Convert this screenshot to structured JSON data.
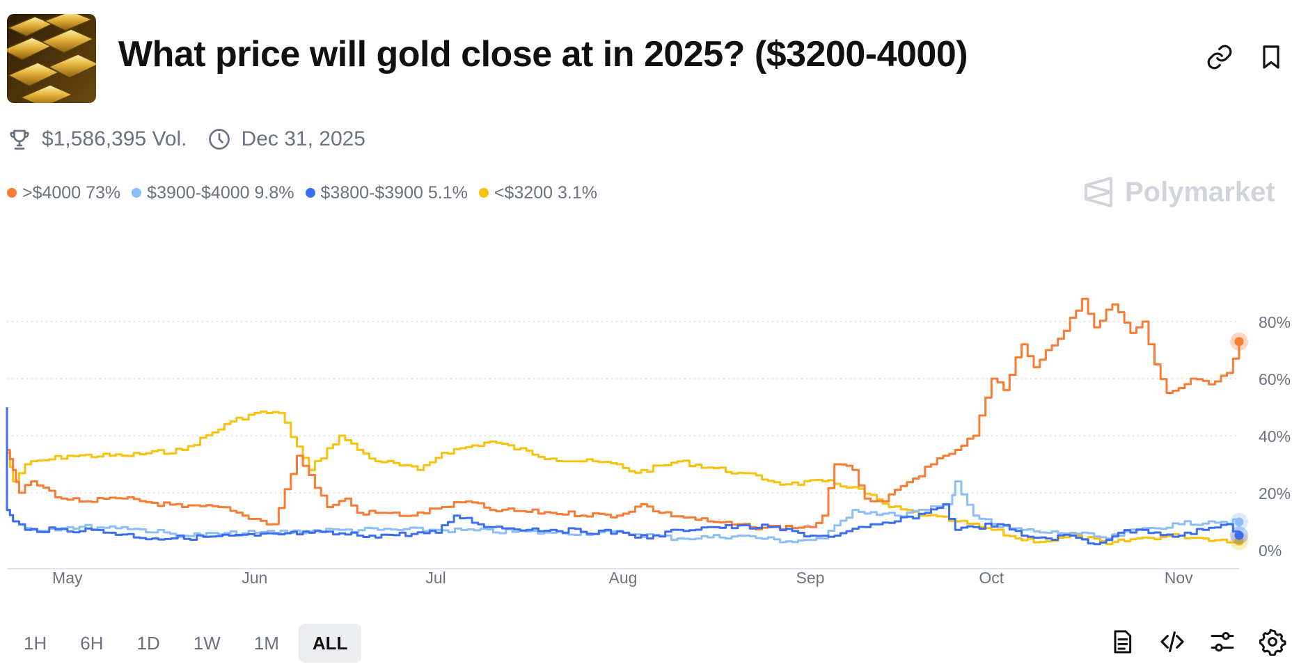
{
  "header": {
    "title": "What price will gold close at in 2025? ($3200-4000)",
    "thumbnail": "gold-bars-image",
    "actions": [
      {
        "name": "copy-link",
        "icon": "link-icon"
      },
      {
        "name": "bookmark",
        "icon": "bookmark-icon"
      }
    ]
  },
  "meta": {
    "volume": "$1,586,395 Vol.",
    "end_date": "Dec 31, 2025",
    "volume_icon": "trophy-icon",
    "date_icon": "clock-icon"
  },
  "brand": {
    "name": "Polymarket"
  },
  "legend": [
    {
      "label": ">$4000",
      "value": "73%",
      "color": "#f97c35"
    },
    {
      "label": "$3900-$4000",
      "value": "9.8%",
      "color": "#8dbef8"
    },
    {
      "label": "$3800-$3900",
      "value": "5.1%",
      "color": "#3c6ef2"
    },
    {
      "label": "<$3200",
      "value": "3.1%",
      "color": "#f8c20c"
    }
  ],
  "chart_data": {
    "type": "line",
    "x_tick_labels": [
      "May",
      "Jun",
      "Jul",
      "Aug",
      "Sep",
      "Oct",
      "Nov"
    ],
    "y_tick_labels": [
      "0%",
      "20%",
      "40%",
      "60%",
      "80%"
    ],
    "ylim": [
      0,
      100
    ],
    "grid": true,
    "legend_position": "top-left",
    "series": [
      {
        "name": ">$4000",
        "color": "#f97c35",
        "x": [
          "Apr 21",
          "Apr 22",
          "Apr 23",
          "Apr 25",
          "Apr 30",
          "May 4",
          "May 10",
          "May 20",
          "May 26",
          "May 30",
          "Jun 4",
          "Jun 8",
          "Jun 13",
          "Jun 16",
          "Jun 18",
          "Jun 22",
          "Jun 27",
          "Jul 2",
          "Jul 6",
          "Jul 10",
          "Jul 20",
          "Jul 31",
          "Aug 4",
          "Aug 7",
          "Aug 15",
          "Aug 22",
          "Sep 1",
          "Sep 3",
          "Sep 5",
          "Sep 8",
          "Sep 10",
          "Sep 13",
          "Sep 18",
          "Sep 21",
          "Sep 25",
          "Sep 28",
          "Oct 1",
          "Oct 3",
          "Oct 6",
          "Oct 8",
          "Oct 10",
          "Oct 12",
          "Oct 16",
          "Oct 18",
          "Oct 21",
          "Oct 24",
          "Oct 26",
          "Oct 28",
          "Oct 30",
          "Nov 3",
          "Nov 6",
          "Nov 9",
          "Nov 11"
        ],
        "values": [
          35,
          28,
          20,
          24,
          18,
          17,
          18,
          15,
          15,
          12,
          9,
          33,
          15,
          18,
          13,
          13,
          12,
          15,
          17,
          14,
          13,
          12,
          16,
          13,
          10,
          8,
          8,
          12,
          30,
          28,
          18,
          17,
          25,
          30,
          35,
          40,
          60,
          56,
          72,
          64,
          70,
          74,
          88,
          78,
          86,
          76,
          80,
          65,
          55,
          60,
          58,
          62,
          73
        ]
      },
      {
        "name": "$3900-$4000",
        "color": "#8dbef8",
        "x": [
          "Apr 21",
          "Apr 22",
          "Apr 25",
          "May 1",
          "May 10",
          "May 20",
          "Jun 1",
          "Jun 15",
          "Jul 1",
          "Jul 20",
          "Aug 1",
          "Aug 10",
          "Aug 20",
          "Aug 28",
          "Sep 3",
          "Sep 8",
          "Sep 15",
          "Sep 20",
          "Sep 24",
          "Sep 25",
          "Sep 28",
          "Oct 2",
          "Oct 6",
          "Oct 10",
          "Oct 14",
          "Oct 20",
          "Oct 25",
          "Nov 1",
          "Nov 6",
          "Nov 11"
        ],
        "values": [
          14,
          10,
          7,
          8,
          8,
          5,
          6,
          7,
          7,
          6,
          6,
          4,
          5,
          3,
          4,
          14,
          12,
          14,
          16,
          24,
          12,
          8,
          7,
          6,
          6,
          4,
          7,
          9,
          10,
          9.8
        ]
      },
      {
        "name": "$3800-$3900",
        "color": "#3c6ef2",
        "x": [
          "Apr 21",
          "Apr 21",
          "Apr 22",
          "Apr 24",
          "May 5",
          "May 15",
          "Jun 1",
          "Jun 10",
          "Jun 20",
          "Jul 1",
          "Jul 4",
          "Jul 10",
          "Jul 20",
          "Aug 1",
          "Aug 5",
          "Aug 10",
          "Aug 15",
          "Aug 25",
          "Sep 1",
          "Sep 5",
          "Sep 10",
          "Sep 15",
          "Sep 20",
          "Sep 23",
          "Sep 25",
          "Sep 28",
          "Oct 2",
          "Oct 6",
          "Oct 10",
          "Oct 14",
          "Oct 18",
          "Oct 22",
          "Oct 26",
          "Nov 1",
          "Nov 5",
          "Nov 9",
          "Nov 11"
        ],
        "values": [
          50,
          14,
          10,
          7,
          7,
          4,
          5,
          6,
          5,
          6,
          12,
          8,
          7,
          6,
          4,
          7,
          8,
          8,
          5,
          5,
          8,
          10,
          13,
          16,
          7,
          8,
          9,
          5,
          4,
          5,
          2,
          6,
          7,
          5,
          7,
          9,
          5.1
        ]
      },
      {
        "name": "<$3200",
        "color": "#f8c20c",
        "x": [
          "Apr 21",
          "Apr 22",
          "Apr 24",
          "May 1",
          "May 10",
          "May 20",
          "May 28",
          "Jun 1",
          "Jun 5",
          "Jun 10",
          "Jun 15",
          "Jun 20",
          "Jun 28",
          "Jul 2",
          "Jul 10",
          "Jul 20",
          "Jul 31",
          "Aug 3",
          "Aug 10",
          "Aug 20",
          "Aug 28",
          "Sep 3",
          "Sep 8",
          "Sep 14",
          "Sep 20",
          "Sep 25",
          "Oct 1",
          "Oct 5",
          "Oct 10",
          "Oct 15",
          "Oct 20",
          "Oct 25",
          "Nov 1",
          "Nov 5",
          "Nov 11"
        ],
        "values": [
          34,
          24,
          30,
          33,
          33,
          35,
          45,
          48,
          48,
          28,
          40,
          32,
          28,
          34,
          38,
          32,
          30,
          27,
          31,
          27,
          23,
          24,
          22,
          15,
          12,
          10,
          7,
          4,
          3,
          5,
          2,
          4,
          5,
          4,
          3.1
        ]
      }
    ]
  },
  "time_ranges": {
    "options": [
      "1H",
      "6H",
      "1D",
      "1W",
      "1M",
      "ALL"
    ],
    "selected": "ALL"
  },
  "tools": [
    {
      "name": "rules",
      "icon": "document-icon"
    },
    {
      "name": "embed",
      "icon": "code-icon"
    },
    {
      "name": "filters",
      "icon": "sliders-icon"
    },
    {
      "name": "settings",
      "icon": "gear-icon"
    }
  ]
}
